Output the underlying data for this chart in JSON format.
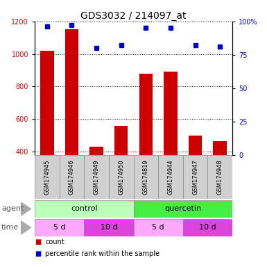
{
  "title": "GDS3032 / 214097_at",
  "samples": [
    "GSM174945",
    "GSM174946",
    "GSM174949",
    "GSM174950",
    "GSM174819",
    "GSM174944",
    "GSM174947",
    "GSM174948"
  ],
  "counts": [
    1020,
    1150,
    430,
    560,
    880,
    890,
    500,
    465
  ],
  "percentiles": [
    96,
    97,
    80,
    82,
    95,
    95,
    82,
    81
  ],
  "ylim_left": [
    380,
    1200
  ],
  "ylim_right": [
    0,
    100
  ],
  "yticks_left": [
    400,
    600,
    800,
    1000,
    1200
  ],
  "yticks_right": [
    0,
    25,
    50,
    75,
    100
  ],
  "bar_color": "#cc0000",
  "dot_color": "#0000cc",
  "agent_groups": [
    {
      "label": "control",
      "start": 0,
      "end": 4,
      "color": "#bbffbb"
    },
    {
      "label": "quercetin",
      "start": 4,
      "end": 8,
      "color": "#44ee44"
    }
  ],
  "time_groups": [
    {
      "label": "5 d",
      "start": 0,
      "end": 2,
      "color": "#ffaaff"
    },
    {
      "label": "10 d",
      "start": 2,
      "end": 4,
      "color": "#dd44dd"
    },
    {
      "label": "5 d",
      "start": 4,
      "end": 6,
      "color": "#ffaaff"
    },
    {
      "label": "10 d",
      "start": 6,
      "end": 8,
      "color": "#dd44dd"
    }
  ],
  "legend_count_label": "count",
  "legend_pct_label": "percentile rank within the sample",
  "agent_label": "agent",
  "time_label": "time",
  "sample_bg_color": "#d0d0d0",
  "title_fontsize": 10,
  "tick_fontsize": 7,
  "bar_width": 0.55
}
